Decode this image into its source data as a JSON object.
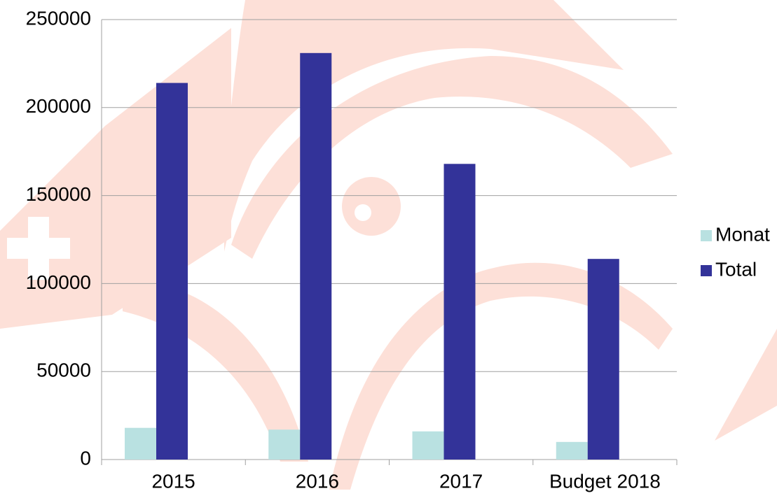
{
  "chart_data": {
    "type": "bar",
    "categories": [
      "2015",
      "2016",
      "2017",
      "Budget 2018"
    ],
    "series": [
      {
        "name": "Monat",
        "color": "#b9e1e1",
        "values": [
          18000,
          17000,
          16000,
          10000
        ]
      },
      {
        "name": "Total",
        "color": "#333399",
        "values": [
          214000,
          231000,
          168000,
          114000
        ]
      }
    ],
    "ylim": [
      0,
      250000
    ],
    "yticks": [
      0,
      50000,
      100000,
      150000,
      200000,
      250000
    ],
    "grid": true,
    "legend": "right"
  }
}
